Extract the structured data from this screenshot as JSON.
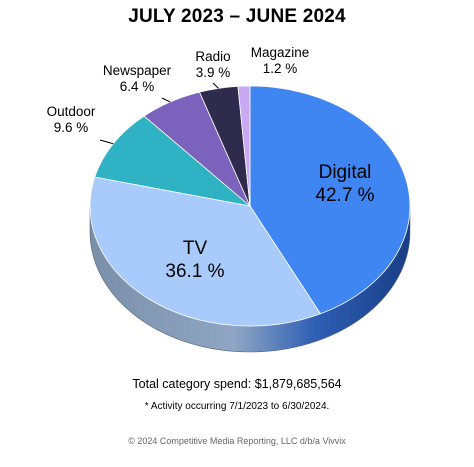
{
  "chart_data": {
    "type": "pie",
    "title": "JULY 2023 – JUNE 2024",
    "unit": "%",
    "slices": [
      {
        "name": "Digital",
        "value": 42.7,
        "label": "Digital",
        "value_label": "42.7 %",
        "color": "#3f86f3"
      },
      {
        "name": "TV",
        "value": 36.1,
        "label": "TV",
        "value_label": "36.1 %",
        "color": "#a8cbfb"
      },
      {
        "name": "Outdoor",
        "value": 9.6,
        "label": "Outdoor",
        "value_label": "9.6 %",
        "color": "#2fb3c4"
      },
      {
        "name": "Newspaper",
        "value": 6.4,
        "label": "Newspaper",
        "value_label": "6.4 %",
        "color": "#7b62bd"
      },
      {
        "name": "Radio",
        "value": 3.9,
        "label": "Radio",
        "value_label": "3.9 %",
        "color": "#2f2b4d"
      },
      {
        "name": "Magazine",
        "value": 1.2,
        "label": "Magazine",
        "value_label": "1.2 %",
        "color": "#c9a9f3"
      }
    ]
  },
  "footer": {
    "total": "Total category spend: $1,879,685,564",
    "note": "* Activity occurring 7/1/2023 to 6/30/2024.",
    "copyright": "© 2024 Competitive Media Reporting, LLC d/b/a Vivvix"
  }
}
